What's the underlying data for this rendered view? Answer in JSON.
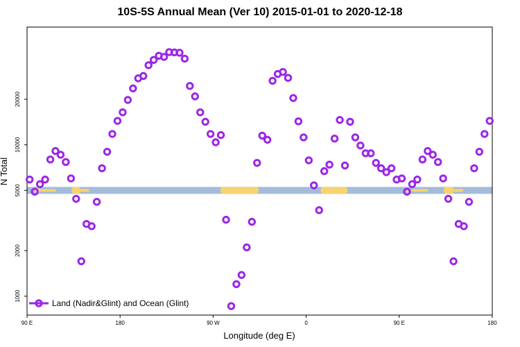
{
  "chart_data": {
    "type": "scatter",
    "title": "10S-5S Annual Mean (Ver 10)   2015-01-01 to 2020-12-18",
    "xlabel": "Longitude (deg E)",
    "ylabel": "N Total",
    "y_scale": "log",
    "ylim": [
      750,
      60000
    ],
    "x_ticks": [
      {
        "value": 90,
        "label": "90 E"
      },
      {
        "value": 180,
        "label": "180"
      },
      {
        "value": 270,
        "label": "90 W"
      },
      {
        "value": 360,
        "label": "0"
      },
      {
        "value": 450,
        "label": "90 E"
      },
      {
        "value": 540,
        "label": "180"
      }
    ],
    "y_ticks": [
      1000,
      2000,
      5000,
      10000,
      20000
    ],
    "xlim": [
      90,
      540
    ],
    "legend": {
      "position": "bottom-left",
      "label": "Land (Nadir&Glint) and Ocean (Glint)"
    },
    "series": [
      {
        "name": "Land (Nadir&Glint) and Ocean (Glint)",
        "color": "#9b27e6",
        "x": [
          92.5,
          97.5,
          102.5,
          107.5,
          112.5,
          117.5,
          122.5,
          127.5,
          132.5,
          137.5,
          142.5,
          147.5,
          152.5,
          157.5,
          162.5,
          167.5,
          172.5,
          177.5,
          182.5,
          187.5,
          192.5,
          197.5,
          202.5,
          207.5,
          212.5,
          217.5,
          222.5,
          227.5,
          232.5,
          237.5,
          242.5,
          247.5,
          252.5,
          257.5,
          262.5,
          267.5,
          272.5,
          277.5,
          282.5,
          287.5,
          292.5,
          297.5,
          302.5,
          307.5,
          312.5,
          317.5,
          322.5,
          327.5,
          332.5,
          337.5,
          342.5,
          347.5,
          352.5,
          357.5,
          362.5,
          367.5,
          372.5,
          377.5,
          382.5,
          387.5,
          392.5,
          397.5,
          402.5,
          407.5,
          412.5,
          417.5,
          422.5,
          427.5,
          432.5,
          437.5,
          442.5,
          447.5,
          452.5,
          457.5,
          462.5,
          467.5,
          472.5,
          477.5,
          482.5,
          487.5,
          492.5,
          497.5,
          502.5,
          507.5,
          512.5,
          517.5,
          522.5,
          527.5,
          532.5,
          537.5
        ],
        "y": [
          5900,
          4900,
          5500,
          5900,
          8000,
          9100,
          8600,
          7700,
          6000,
          4400,
          1700,
          3000,
          2900,
          4200,
          7000,
          9000,
          11800,
          14400,
          16400,
          19800,
          23600,
          27500,
          28500,
          33600,
          36400,
          38800,
          38100,
          41000,
          40800,
          40600,
          37100,
          24500,
          20900,
          16400,
          14200,
          11800,
          10400,
          11600,
          3200,
          860,
          1200,
          1380,
          2100,
          3100,
          7600,
          11500,
          10800,
          26500,
          29400,
          30300,
          27700,
          20400,
          14300,
          11200,
          7900,
          5400,
          3700,
          6700,
          7400,
          11000,
          14600,
          7300,
          14200,
          11200,
          9900,
          8800,
          8800,
          7600,
          7000,
          6600,
          7000,
          5900,
          6000,
          4900,
          5500,
          5900,
          8000,
          9100,
          8600,
          7700,
          6000,
          4400,
          1700,
          3000,
          2900,
          4200,
          7000,
          9000,
          11800,
          14400
        ]
      }
    ]
  },
  "map_strip": {
    "ocean_color": "#a3bcdc",
    "land_color": "#f9d36f"
  }
}
